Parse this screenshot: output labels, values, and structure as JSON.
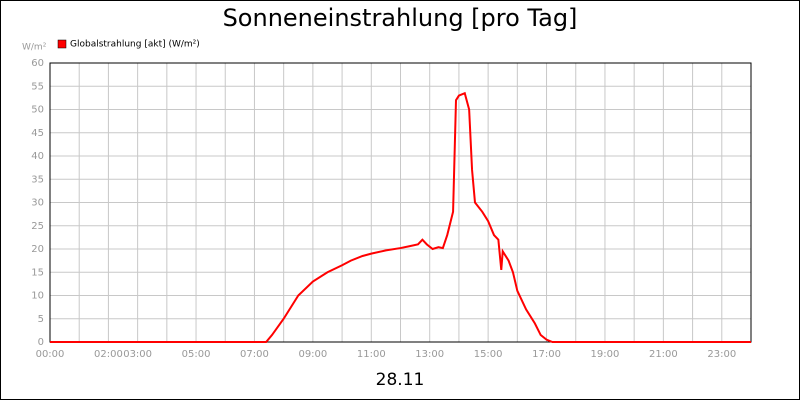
{
  "chart_data": {
    "type": "line",
    "title": "Sonneneinstrahlung [pro Tag]",
    "y_label": "W/m²",
    "x_label": "28.11",
    "x": [
      0,
      7.4,
      7.6,
      8.0,
      8.5,
      9.0,
      9.5,
      10.0,
      10.3,
      10.7,
      11.0,
      11.5,
      12.0,
      12.3,
      12.6,
      12.75,
      12.9,
      13.1,
      13.3,
      13.45,
      13.6,
      13.8,
      13.9,
      14.0,
      14.2,
      14.35,
      14.45,
      14.55,
      14.8,
      15.0,
      15.2,
      15.35,
      15.45,
      15.5,
      15.7,
      15.85,
      16.0,
      16.3,
      16.6,
      16.8,
      17.0,
      17.2,
      24
    ],
    "series": [
      {
        "name": "Globalstrahlung [akt] (W/m²)",
        "color": "#ff0000",
        "values": [
          0,
          0,
          1.5,
          5,
          10,
          13,
          15,
          16.5,
          17.5,
          18.5,
          19,
          19.7,
          20.2,
          20.6,
          21,
          22,
          21,
          20,
          20.4,
          20.2,
          23,
          28,
          52,
          53,
          53.5,
          50,
          37,
          30,
          28,
          26,
          23,
          22,
          15.5,
          19.5,
          17.5,
          15,
          11,
          7,
          4,
          1.5,
          0.5,
          0,
          0
        ]
      }
    ],
    "xlim": [
      0,
      24
    ],
    "xticks": [
      {
        "value": 0,
        "label": "00:00"
      },
      {
        "value": 2,
        "label": "02:00"
      },
      {
        "value": 3,
        "label": "03:00"
      },
      {
        "value": 5,
        "label": "05:00"
      },
      {
        "value": 7,
        "label": "07:00"
      },
      {
        "value": 9,
        "label": "09:00"
      },
      {
        "value": 11,
        "label": "11:00"
      },
      {
        "value": 13,
        "label": "13:00"
      },
      {
        "value": 15,
        "label": "15:00"
      },
      {
        "value": 17,
        "label": "17:00"
      },
      {
        "value": 19,
        "label": "19:00"
      },
      {
        "value": 21,
        "label": "21:00"
      },
      {
        "value": 23,
        "label": "23:00"
      }
    ],
    "minor_xticks": [
      1,
      4,
      6,
      8,
      10,
      12,
      14,
      16,
      18,
      20,
      22
    ],
    "ylim": [
      0,
      60
    ],
    "yticks": [
      0,
      5,
      10,
      15,
      20,
      25,
      30,
      35,
      40,
      45,
      50,
      55,
      60
    ],
    "grid": true,
    "legend": "top-left"
  }
}
